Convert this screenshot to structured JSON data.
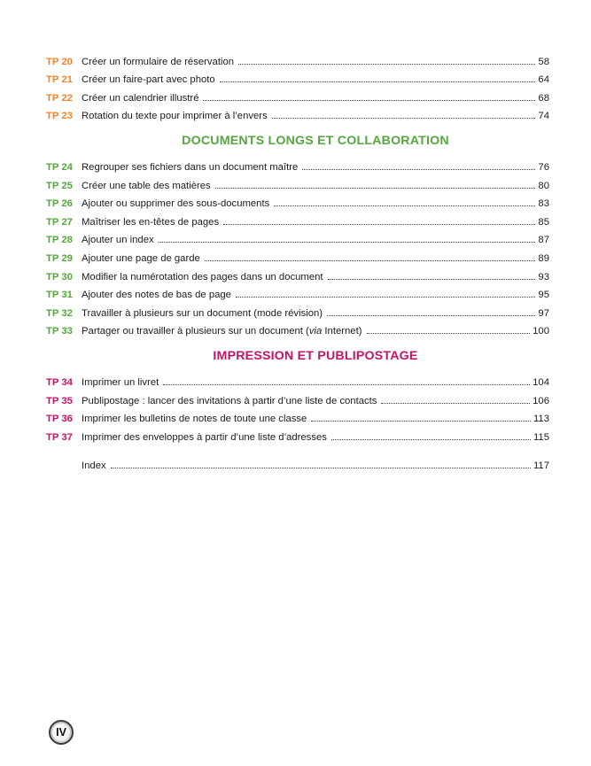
{
  "colors": {
    "orange": "#ee8431",
    "green": "#55a63f",
    "magenta": "#c0146b",
    "text": "#1b1b1b"
  },
  "footer": {
    "page_number": "IV"
  },
  "sections": [
    {
      "header": null,
      "color_key": "orange",
      "entries": [
        {
          "label": "TP 20",
          "title": "Créer un formulaire de réservation",
          "page": "58"
        },
        {
          "label": "TP 21",
          "title": "Créer un faire-part avec photo",
          "page": "64"
        },
        {
          "label": "TP 22",
          "title": "Créer un calendrier illustré",
          "page": "68"
        },
        {
          "label": "TP 23",
          "title": "Rotation du texte pour imprimer à l’envers",
          "page": "74"
        }
      ]
    },
    {
      "header": "DOCUMENTS LONGS ET COLLABORATION",
      "color_key": "green",
      "entries": [
        {
          "label": "TP 24",
          "title": "Regrouper ses fichiers dans un document maître",
          "page": "76"
        },
        {
          "label": "TP 25",
          "title": "Créer une table des matières",
          "page": "80"
        },
        {
          "label": "TP 26",
          "title": "Ajouter ou supprimer des sous-documents",
          "page": "83"
        },
        {
          "label": "TP 27",
          "title": "Maîtriser les en-têtes de pages",
          "page": "85"
        },
        {
          "label": "TP 28",
          "title": "Ajouter un index",
          "page": "87"
        },
        {
          "label": "TP 29",
          "title": "Ajouter une page de garde",
          "page": "89"
        },
        {
          "label": "TP 30",
          "title": "Modifier la numérotation des pages dans un document",
          "page": "93"
        },
        {
          "label": "TP 31",
          "title": "Ajouter des notes de bas de page",
          "page": "95"
        },
        {
          "label": "TP 32",
          "title": "Travailler à plusieurs sur un document (mode révision)",
          "page": "97"
        },
        {
          "label": "TP 33",
          "title": "Partager ou travailler à plusieurs sur un document (via Internet)",
          "page": "100",
          "italic_substring": "via"
        }
      ]
    },
    {
      "header": "IMPRESSION ET PUBLIPOSTAGE",
      "color_key": "magenta",
      "entries": [
        {
          "label": "TP 34",
          "title": "Imprimer un livret",
          "page": "104"
        },
        {
          "label": "TP 35",
          "title": "Publipostage : lancer des invitations à partir d’une liste de contacts",
          "page": "106"
        },
        {
          "label": "TP 36",
          "title": "Imprimer les bulletins de notes de toute une classe",
          "page": "113"
        },
        {
          "label": "TP 37",
          "title": "Imprimer des enveloppes à partir d’une liste d’adresses",
          "page": "115"
        }
      ]
    },
    {
      "header": null,
      "color_key": "text",
      "entries": [
        {
          "label": "",
          "title": "Index",
          "page": "117"
        }
      ]
    }
  ]
}
